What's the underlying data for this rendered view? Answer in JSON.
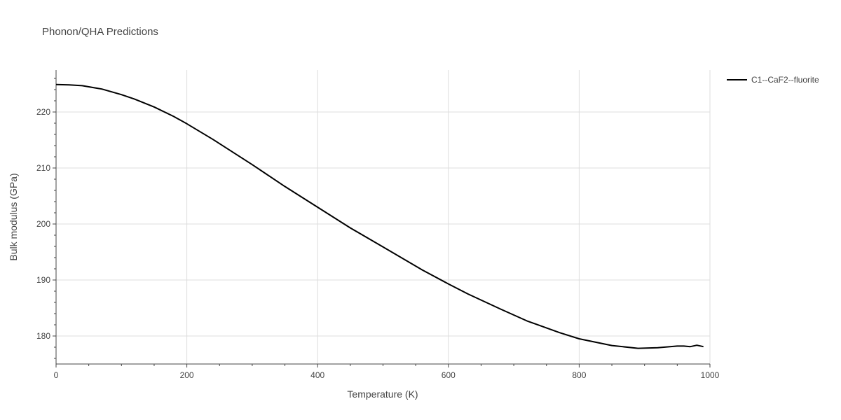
{
  "chart_data": {
    "type": "line",
    "title": "Phonon/QHA Predictions",
    "xlabel": "Temperature (K)",
    "ylabel": "Bulk modulus (GPa)",
    "xlim": [
      0,
      1000
    ],
    "ylim": [
      175,
      227.5
    ],
    "x_ticks": [
      0,
      200,
      400,
      600,
      800,
      1000
    ],
    "y_ticks": [
      180,
      190,
      200,
      210,
      220
    ],
    "grid": true,
    "legend_position": "top-right",
    "series": [
      {
        "name": "C1--CaF2--fluorite",
        "color": "#000000",
        "x": [
          0,
          20,
          40,
          50,
          70,
          100,
          120,
          150,
          180,
          200,
          240,
          300,
          350,
          400,
          450,
          500,
          560,
          600,
          630,
          680,
          720,
          770,
          800,
          850,
          890,
          920,
          950,
          960,
          970,
          980,
          990
        ],
        "y": [
          224.9,
          224.85,
          224.7,
          224.5,
          224.1,
          223.1,
          222.3,
          220.9,
          219.2,
          217.9,
          215.1,
          210.6,
          206.7,
          203.0,
          199.3,
          195.9,
          191.8,
          189.3,
          187.5,
          184.8,
          182.7,
          180.6,
          179.5,
          178.3,
          177.8,
          177.9,
          178.2,
          178.2,
          178.1,
          178.35,
          178.1
        ]
      }
    ]
  }
}
